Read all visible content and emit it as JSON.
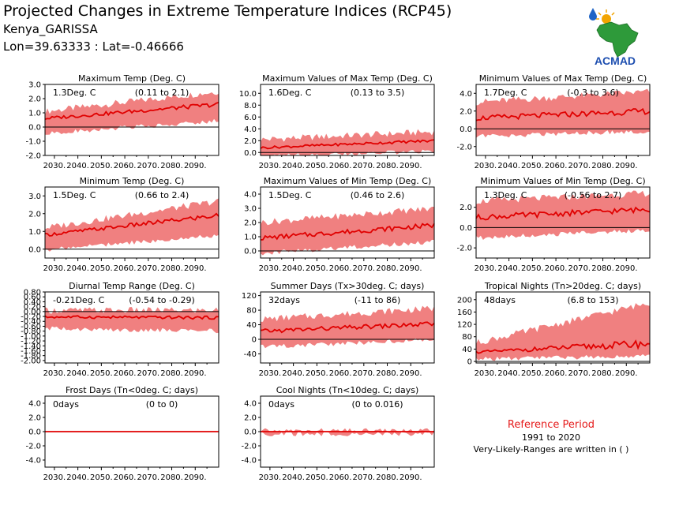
{
  "header": {
    "title": "Projected Changes in Extreme Temperature Indices (RCP45)",
    "location": "Kenya_GARISSA",
    "coordinates": "Lon=39.63333 : Lat=-0.46666"
  },
  "logo": {
    "text": "ACMAD"
  },
  "colors": {
    "band": "#f08080",
    "line": "#e00000",
    "text": "#000000",
    "reference": "#e51a1a"
  },
  "reference": {
    "title": "Reference Period",
    "years": "1991 to 2020",
    "note": "Very-Likely-Ranges are written in ( )"
  },
  "chart_data": [
    {
      "type": "area",
      "title": "Maximum Temp (Deg. C)",
      "summary": "1.3Deg. C",
      "range": "(0.11 to 2.1)",
      "ylim": [
        -2.0,
        3.0
      ],
      "yticks": [
        "-2.0",
        "-1.0",
        "0.0",
        "1.0",
        "2.0",
        "3.0"
      ],
      "xticks": [
        "2030.",
        "2040.",
        "2050.",
        "2060.",
        "2070.",
        "2080.",
        "2090."
      ],
      "series": [
        {
          "x_start": 2026,
          "x_end": 2100,
          "median_start": 0.6,
          "median_end": 1.6,
          "lower_start": -0.3,
          "lower_end": 0.6,
          "upper_start": 1.1,
          "upper_end": 2.5
        }
      ]
    },
    {
      "type": "area",
      "title": "Maximum Values of Max Temp (Deg. C)",
      "summary": "1.6Deg. C",
      "range": "(0.13 to 3.5)",
      "ylim": [
        -0.5,
        11.5
      ],
      "yticks": [
        "0.0",
        "2.0",
        "4.0",
        "6.0",
        "8.0",
        "10.0"
      ],
      "xticks": [
        "2030.",
        "2040.",
        "2050.",
        "2060.",
        "2070.",
        "2080.",
        "2090."
      ],
      "series": [
        {
          "x_start": 2026,
          "x_end": 2100,
          "median_start": 0.8,
          "median_end": 2.0,
          "lower_start": -0.3,
          "lower_end": 0.6,
          "upper_start": 2.2,
          "upper_end": 3.5
        }
      ]
    },
    {
      "type": "area",
      "title": "Minimum Values of Max Temp (Deg. C)",
      "summary": "1.7Deg. C",
      "range": "(-0.3 to 3.6)",
      "ylim": [
        -3.0,
        5.0
      ],
      "yticks": [
        "-2.0",
        "0.0",
        "2.0",
        "4.0"
      ],
      "xticks": [
        "2030.",
        "2040.",
        "2050.",
        "2060.",
        "2070.",
        "2080.",
        "2090."
      ],
      "series": [
        {
          "x_start": 2026,
          "x_end": 2100,
          "median_start": 1.2,
          "median_end": 2.0,
          "lower_start": -0.6,
          "lower_end": 0.0,
          "upper_start": 3.0,
          "upper_end": 4.2
        }
      ]
    },
    {
      "type": "area",
      "title": "Minimum Temp (Deg. C)",
      "summary": "1.5Deg. C",
      "range": "(0.66 to 2.4)",
      "ylim": [
        -0.5,
        3.5
      ],
      "yticks": [
        "0.0",
        "1.0",
        "2.0",
        "3.0"
      ],
      "xticks": [
        "2030.",
        "2040.",
        "2050.",
        "2060.",
        "2070.",
        "2080.",
        "2090."
      ],
      "series": [
        {
          "x_start": 2026,
          "x_end": 2100,
          "median_start": 0.8,
          "median_end": 1.9,
          "lower_start": 0.1,
          "lower_end": 0.9,
          "upper_start": 1.2,
          "upper_end": 2.7
        }
      ]
    },
    {
      "type": "area",
      "title": "Maximum Values of Min Temp (Deg. C)",
      "summary": "1.5Deg. C",
      "range": "(0.46 to 2.6)",
      "ylim": [
        -0.5,
        4.5
      ],
      "yticks": [
        "0.0",
        "1.0",
        "2.0",
        "3.0",
        "4.0"
      ],
      "xticks": [
        "2030.",
        "2040.",
        "2050.",
        "2060.",
        "2070.",
        "2080.",
        "2090."
      ],
      "series": [
        {
          "x_start": 2026,
          "x_end": 2100,
          "median_start": 0.9,
          "median_end": 1.8,
          "lower_start": 0.0,
          "lower_end": 0.8,
          "upper_start": 2.0,
          "upper_end": 3.0
        }
      ]
    },
    {
      "type": "area",
      "title": "Minimum Values of Min Temp (Deg. C)",
      "summary": "1.3Deg. C",
      "range": "(-0.56 to 2.7)",
      "ylim": [
        -3.0,
        4.0
      ],
      "yticks": [
        "-2.0",
        "0.0",
        "2.0"
      ],
      "xticks": [
        "2030.",
        "2040.",
        "2050.",
        "2060.",
        "2070.",
        "2080.",
        "2090."
      ],
      "series": [
        {
          "x_start": 2026,
          "x_end": 2100,
          "median_start": 1.0,
          "median_end": 1.8,
          "lower_start": -0.8,
          "lower_end": 0.0,
          "upper_start": 2.6,
          "upper_end": 3.4
        }
      ]
    },
    {
      "type": "area",
      "title": "Diurnal Temp Range (Deg. C)",
      "summary": "-0.21Deg. C",
      "range": "(-0.54 to -0.29)",
      "ylim": [
        -2.1,
        0.8
      ],
      "yticks": [
        "-2.00",
        "-1.80",
        "-1.60",
        "-1.40",
        "-1.20",
        "-1.00",
        "-0.80",
        "-0.60",
        "-0.40",
        "-0.20",
        "0.00",
        "0.20",
        "0.40",
        "0.60",
        "0.80"
      ],
      "xticks": [
        "2030.",
        "2040.",
        "2050.",
        "2060.",
        "2070.",
        "2080.",
        "2090."
      ],
      "series": [
        {
          "x_start": 2026,
          "x_end": 2100,
          "median_start": -0.22,
          "median_end": -0.25,
          "lower_start": -0.6,
          "lower_end": -0.7,
          "upper_start": 0.05,
          "upper_end": 0.05
        }
      ]
    },
    {
      "type": "area",
      "title": "Summer Days (Tx>30deg. C; days)",
      "summary": "32days",
      "range": "(-11 to 86)",
      "ylim": [
        -65,
        130
      ],
      "yticks": [
        "-40",
        "0",
        "40",
        "80",
        "120"
      ],
      "xticks": [
        "2030.",
        "2040.",
        "2050.",
        "2060.",
        "2070.",
        "2080.",
        "2090."
      ],
      "series": [
        {
          "x_start": 2026,
          "x_end": 2100,
          "median_start": 22,
          "median_end": 42,
          "lower_start": -15,
          "lower_end": 5,
          "upper_start": 55,
          "upper_end": 85
        }
      ]
    },
    {
      "type": "area",
      "title": "Tropical Nights (Tn>20deg. C; days)",
      "summary": "48days",
      "range": "(6.8 to 153)",
      "ylim": [
        -5,
        225
      ],
      "yticks": [
        "0",
        "40",
        "80",
        "120",
        "160",
        "200"
      ],
      "xticks": [
        "2030.",
        "2040.",
        "2050.",
        "2060.",
        "2070.",
        "2080.",
        "2090."
      ],
      "series": [
        {
          "x_start": 2026,
          "x_end": 2100,
          "median_start": 30,
          "median_end": 58,
          "lower_start": 15,
          "lower_end": 25,
          "upper_start": 60,
          "upper_end": 190
        }
      ]
    },
    {
      "type": "area",
      "title": "Frost Days (Tn<0deg. C; days)",
      "summary": "0days",
      "range": "(0 to 0)",
      "ylim": [
        -5.0,
        5.0
      ],
      "yticks": [
        "-4.0",
        "-2.0",
        "0.0",
        "2.0",
        "4.0"
      ],
      "xticks": [
        "2030.",
        "2040.",
        "2050.",
        "2060.",
        "2070.",
        "2080.",
        "2090."
      ],
      "series": [
        {
          "x_start": 2026,
          "x_end": 2100,
          "median_start": 0,
          "median_end": 0,
          "lower_start": 0,
          "lower_end": 0,
          "upper_start": 0,
          "upper_end": 0
        }
      ]
    },
    {
      "type": "area",
      "title": "Cool Nights (Tn<10deg. C; days)",
      "summary": "0days",
      "range": "(0 to 0.016)",
      "ylim": [
        -5.0,
        5.0
      ],
      "yticks": [
        "-4.0",
        "-2.0",
        "0.0",
        "2.0",
        "4.0"
      ],
      "xticks": [
        "2030.",
        "2040.",
        "2050.",
        "2060.",
        "2070.",
        "2080.",
        "2090."
      ],
      "series": [
        {
          "x_start": 2026,
          "x_end": 2100,
          "median_start": 0,
          "median_end": 0,
          "lower_start": 0,
          "lower_end": 0,
          "upper_start": 0,
          "upper_end": 0.02
        }
      ]
    }
  ]
}
